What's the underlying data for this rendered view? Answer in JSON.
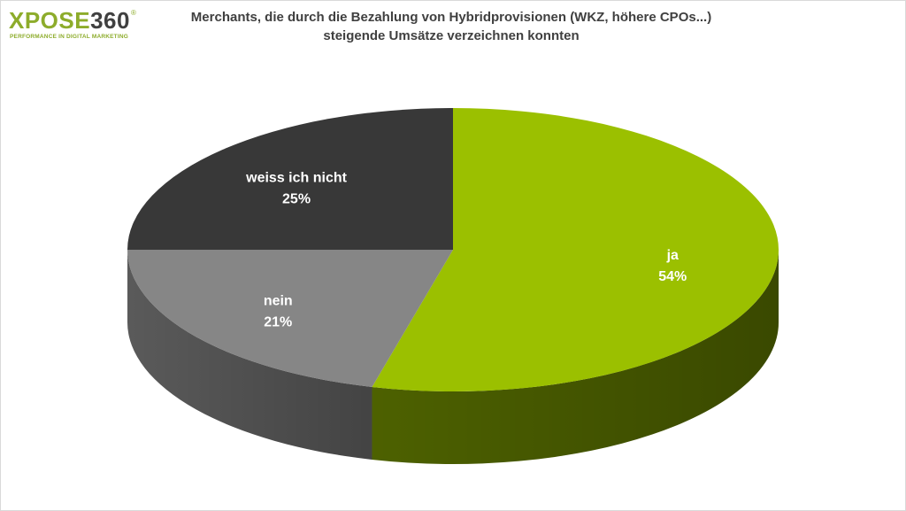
{
  "logo": {
    "part1": "XPOSE",
    "part2": "360",
    "registered": "®",
    "tagline": "PERFORMANCE IN DIGITAL MARKETING",
    "colors": {
      "primary": "#8dac2b",
      "secondary": "#404040"
    }
  },
  "chart_data": {
    "type": "pie",
    "title": "Merchants, die durch die Bezahlung von Hybridprovisionen (WKZ, höhere CPOs...)",
    "subtitle": "steigende Umsätze verzeichnen konnten",
    "slices": [
      {
        "label": "ja",
        "value": 54,
        "value_label": "54%",
        "color": "#9bc000",
        "side_color": "#4d6100"
      },
      {
        "label": "nein",
        "value": 21,
        "value_label": "21%",
        "color": "#868686",
        "side_color": "#5a5a5a"
      },
      {
        "label": "weiss ich nicht",
        "value": 25,
        "value_label": "25%",
        "color": "#383838",
        "side_color": "#262626"
      }
    ],
    "start_angle_deg": -90,
    "direction": "clockwise",
    "style": "3d",
    "legend": "none"
  }
}
